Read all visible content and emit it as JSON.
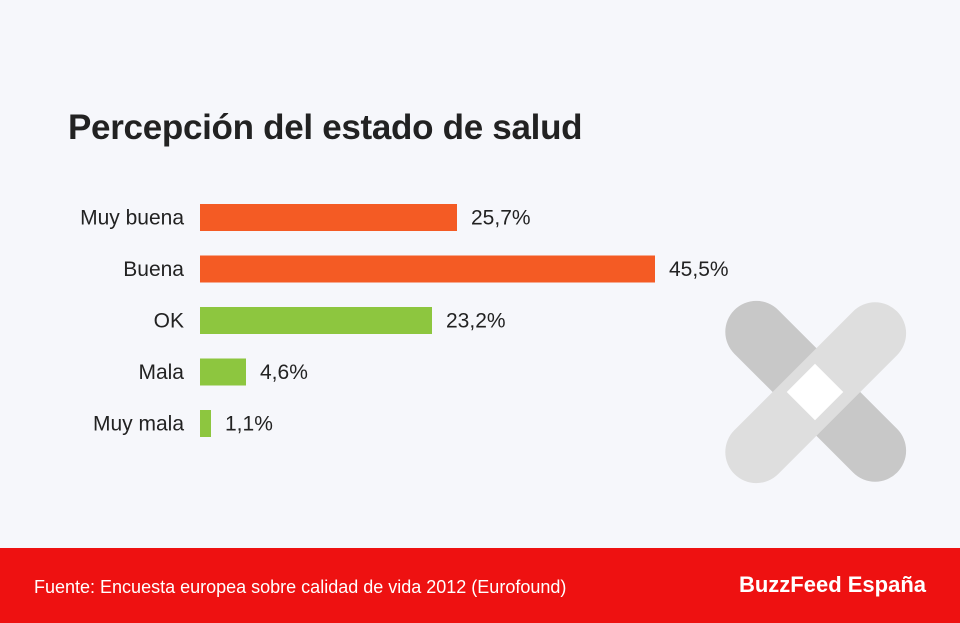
{
  "chart_data": {
    "type": "bar",
    "orientation": "horizontal",
    "title": "Percepción del estado de salud",
    "categories": [
      "Muy buena",
      "Buena",
      "OK",
      "Mala",
      "Muy mala"
    ],
    "values": [
      25.7,
      45.5,
      23.2,
      4.6,
      1.1
    ],
    "value_labels": [
      "25,7%",
      "45,5%",
      "23,2%",
      "4,6%",
      "1,1%"
    ],
    "bar_colors": [
      "#f45b24",
      "#f45b24",
      "#8dc63f",
      "#8dc63f",
      "#8dc63f"
    ],
    "grid": false,
    "legend": "none"
  },
  "footer": {
    "source": "Fuente: Encuesta europea sobre calidad de vida 2012 (Eurofound)",
    "brand": "BuzzFeed España"
  },
  "decoration": {
    "icon": "bandage-cross-icon"
  }
}
